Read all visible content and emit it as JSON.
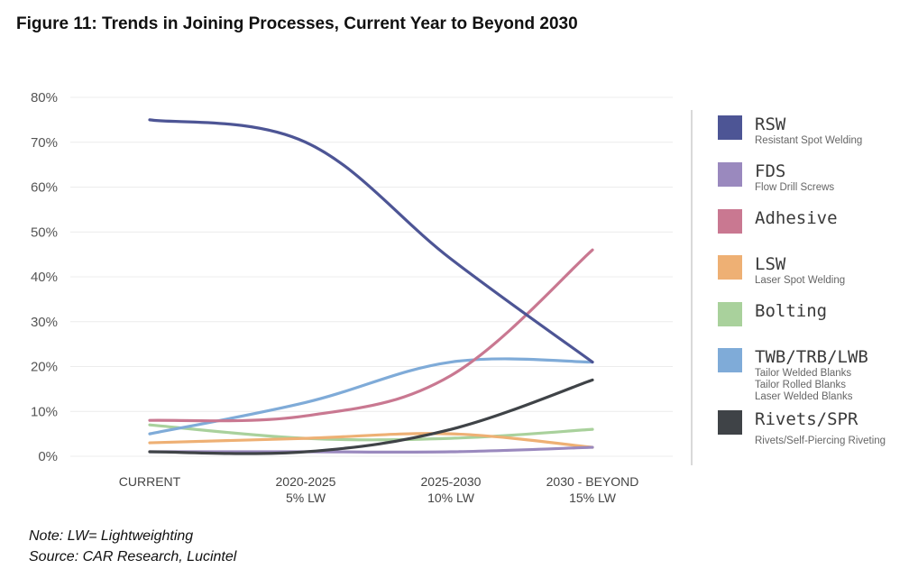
{
  "figure_title": "Figure 11: Trends in Joining Processes, Current Year to Beyond 2030",
  "notes": {
    "note": "Note: LW= Lightweighting",
    "source": "Source: CAR Research, Lucintel"
  },
  "chart_data": {
    "type": "line",
    "title": "Figure 11: Trends in Joining Processes, Current Year to Beyond 2030",
    "xlabel": "",
    "ylabel": "",
    "categories": [
      "CURRENT",
      "2020-2025",
      "2025-2030",
      "2030 - BEYOND"
    ],
    "category_sublabels": [
      "",
      "5% LW",
      "10% LW",
      "15% LW"
    ],
    "ylim": [
      0,
      80
    ],
    "yticks": [
      "0%",
      "10%",
      "20%",
      "30%",
      "40%",
      "50%",
      "60%",
      "70%",
      "80%"
    ],
    "grid": true,
    "legend_position": "right",
    "series": [
      {
        "name": "RSW",
        "description": "Resistant Spot Welding",
        "color": "#4d5595",
        "values": [
          75,
          70,
          44,
          21
        ]
      },
      {
        "name": "FDS",
        "description": "Flow Drill Screws",
        "color": "#9a89be",
        "values": [
          1,
          1,
          1,
          2
        ]
      },
      {
        "name": "Adhesive",
        "description": "",
        "color": "#c97891",
        "values": [
          8,
          9,
          18,
          46
        ]
      },
      {
        "name": "LSW",
        "description": "Laser Spot Welding",
        "color": "#eeb074",
        "values": [
          3,
          4,
          5,
          2
        ]
      },
      {
        "name": "Bolting",
        "description": "",
        "color": "#a9d19c",
        "values": [
          7,
          4,
          4,
          6
        ]
      },
      {
        "name": "TWB/TRB/LWB",
        "description": "Tailor Welded Blanks\nTailor Rolled Blanks\nLaser Welded Blanks",
        "color": "#7fabd8",
        "values": [
          5,
          12,
          21,
          21
        ]
      },
      {
        "name": "Rivets/SPR",
        "description": "Rivets/Self-Piercing Riveting",
        "color": "#3f4347",
        "values": [
          1,
          1,
          6,
          17
        ]
      }
    ]
  }
}
